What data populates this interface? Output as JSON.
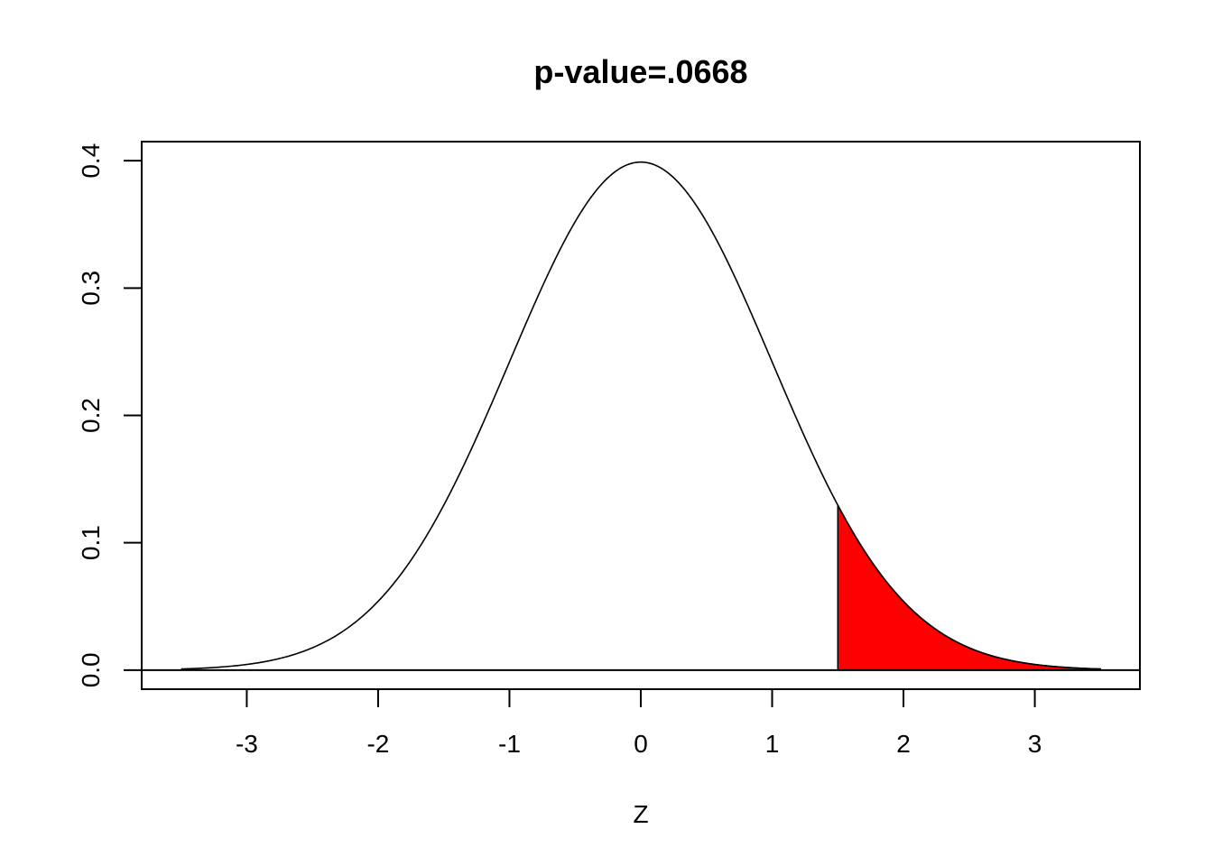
{
  "chart_data": {
    "type": "area",
    "title": "p-value=.0668",
    "xlabel": "Z",
    "ylabel": "",
    "xlim": [
      -3.8,
      3.8
    ],
    "ylim": [
      -0.015,
      0.415
    ],
    "x_ticks": [
      "-3",
      "-2",
      "-1",
      "0",
      "1",
      "2",
      "3"
    ],
    "y_ticks": [
      "0.0",
      "0.1",
      "0.2",
      "0.3",
      "0.4"
    ],
    "curve": {
      "distribution": "standard normal density",
      "x_range": [
        -3.5,
        3.5
      ],
      "x": [
        -3.5,
        -3.0,
        -2.5,
        -2.0,
        -1.5,
        -1.0,
        -0.5,
        0.0,
        0.5,
        1.0,
        1.5,
        2.0,
        2.5,
        3.0,
        3.5
      ],
      "y": [
        0.0009,
        0.0044,
        0.0175,
        0.054,
        0.1295,
        0.242,
        0.3521,
        0.3989,
        0.3521,
        0.242,
        0.1295,
        0.054,
        0.0175,
        0.0044,
        0.0009
      ]
    },
    "shaded_region": {
      "from": 1.5,
      "to": 3.5,
      "color": "#ff0000",
      "area": 0.0668
    },
    "baseline_y": 0,
    "grid": false,
    "legend": "none"
  }
}
